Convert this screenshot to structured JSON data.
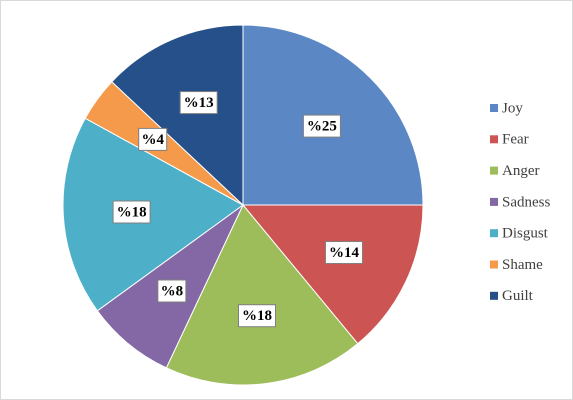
{
  "chart_data": {
    "type": "pie",
    "categories": [
      "Joy",
      "Fear",
      "Anger",
      "Sadness",
      "Disgust",
      "Shame",
      "Guilt"
    ],
    "values": [
      25,
      14,
      18,
      8,
      18,
      4,
      13
    ],
    "value_labels": [
      "%25",
      "%14",
      "%18",
      "%8",
      "%18",
      "%4",
      "%13"
    ],
    "colors": [
      "#5b87c5",
      "#cc5553",
      "#9dbd5a",
      "#8468a6",
      "#4eafc8",
      "#f59a4b",
      "#26508a"
    ],
    "legend": "right"
  }
}
